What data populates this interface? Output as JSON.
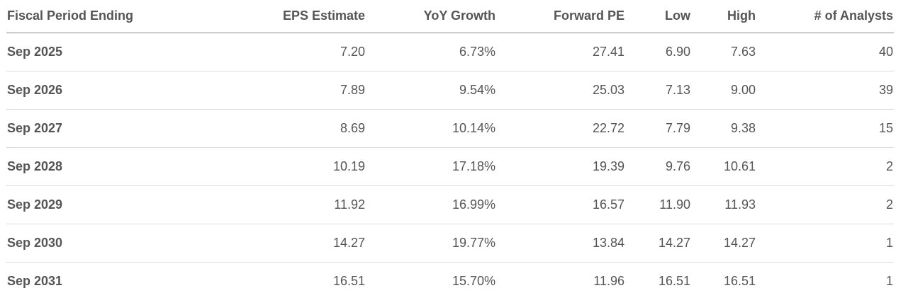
{
  "table": {
    "headers": [
      "Fiscal Period Ending",
      "EPS Estimate",
      "YoY Growth",
      "Forward PE",
      "Low",
      "High",
      "# of Analysts"
    ],
    "rows": [
      [
        "Sep 2025",
        "7.20",
        "6.73%",
        "27.41",
        "6.90",
        "7.63",
        "40"
      ],
      [
        "Sep 2026",
        "7.89",
        "9.54%",
        "25.03",
        "7.13",
        "9.00",
        "39"
      ],
      [
        "Sep 2027",
        "8.69",
        "10.14%",
        "22.72",
        "7.79",
        "9.38",
        "15"
      ],
      [
        "Sep 2028",
        "10.19",
        "17.18%",
        "19.39",
        "9.76",
        "10.61",
        "2"
      ],
      [
        "Sep 2029",
        "11.92",
        "16.99%",
        "16.57",
        "11.90",
        "11.93",
        "2"
      ],
      [
        "Sep 2030",
        "14.27",
        "19.77%",
        "13.84",
        "14.27",
        "14.27",
        "1"
      ],
      [
        "Sep 2031",
        "16.51",
        "15.70%",
        "11.96",
        "16.51",
        "16.51",
        "1"
      ]
    ]
  }
}
